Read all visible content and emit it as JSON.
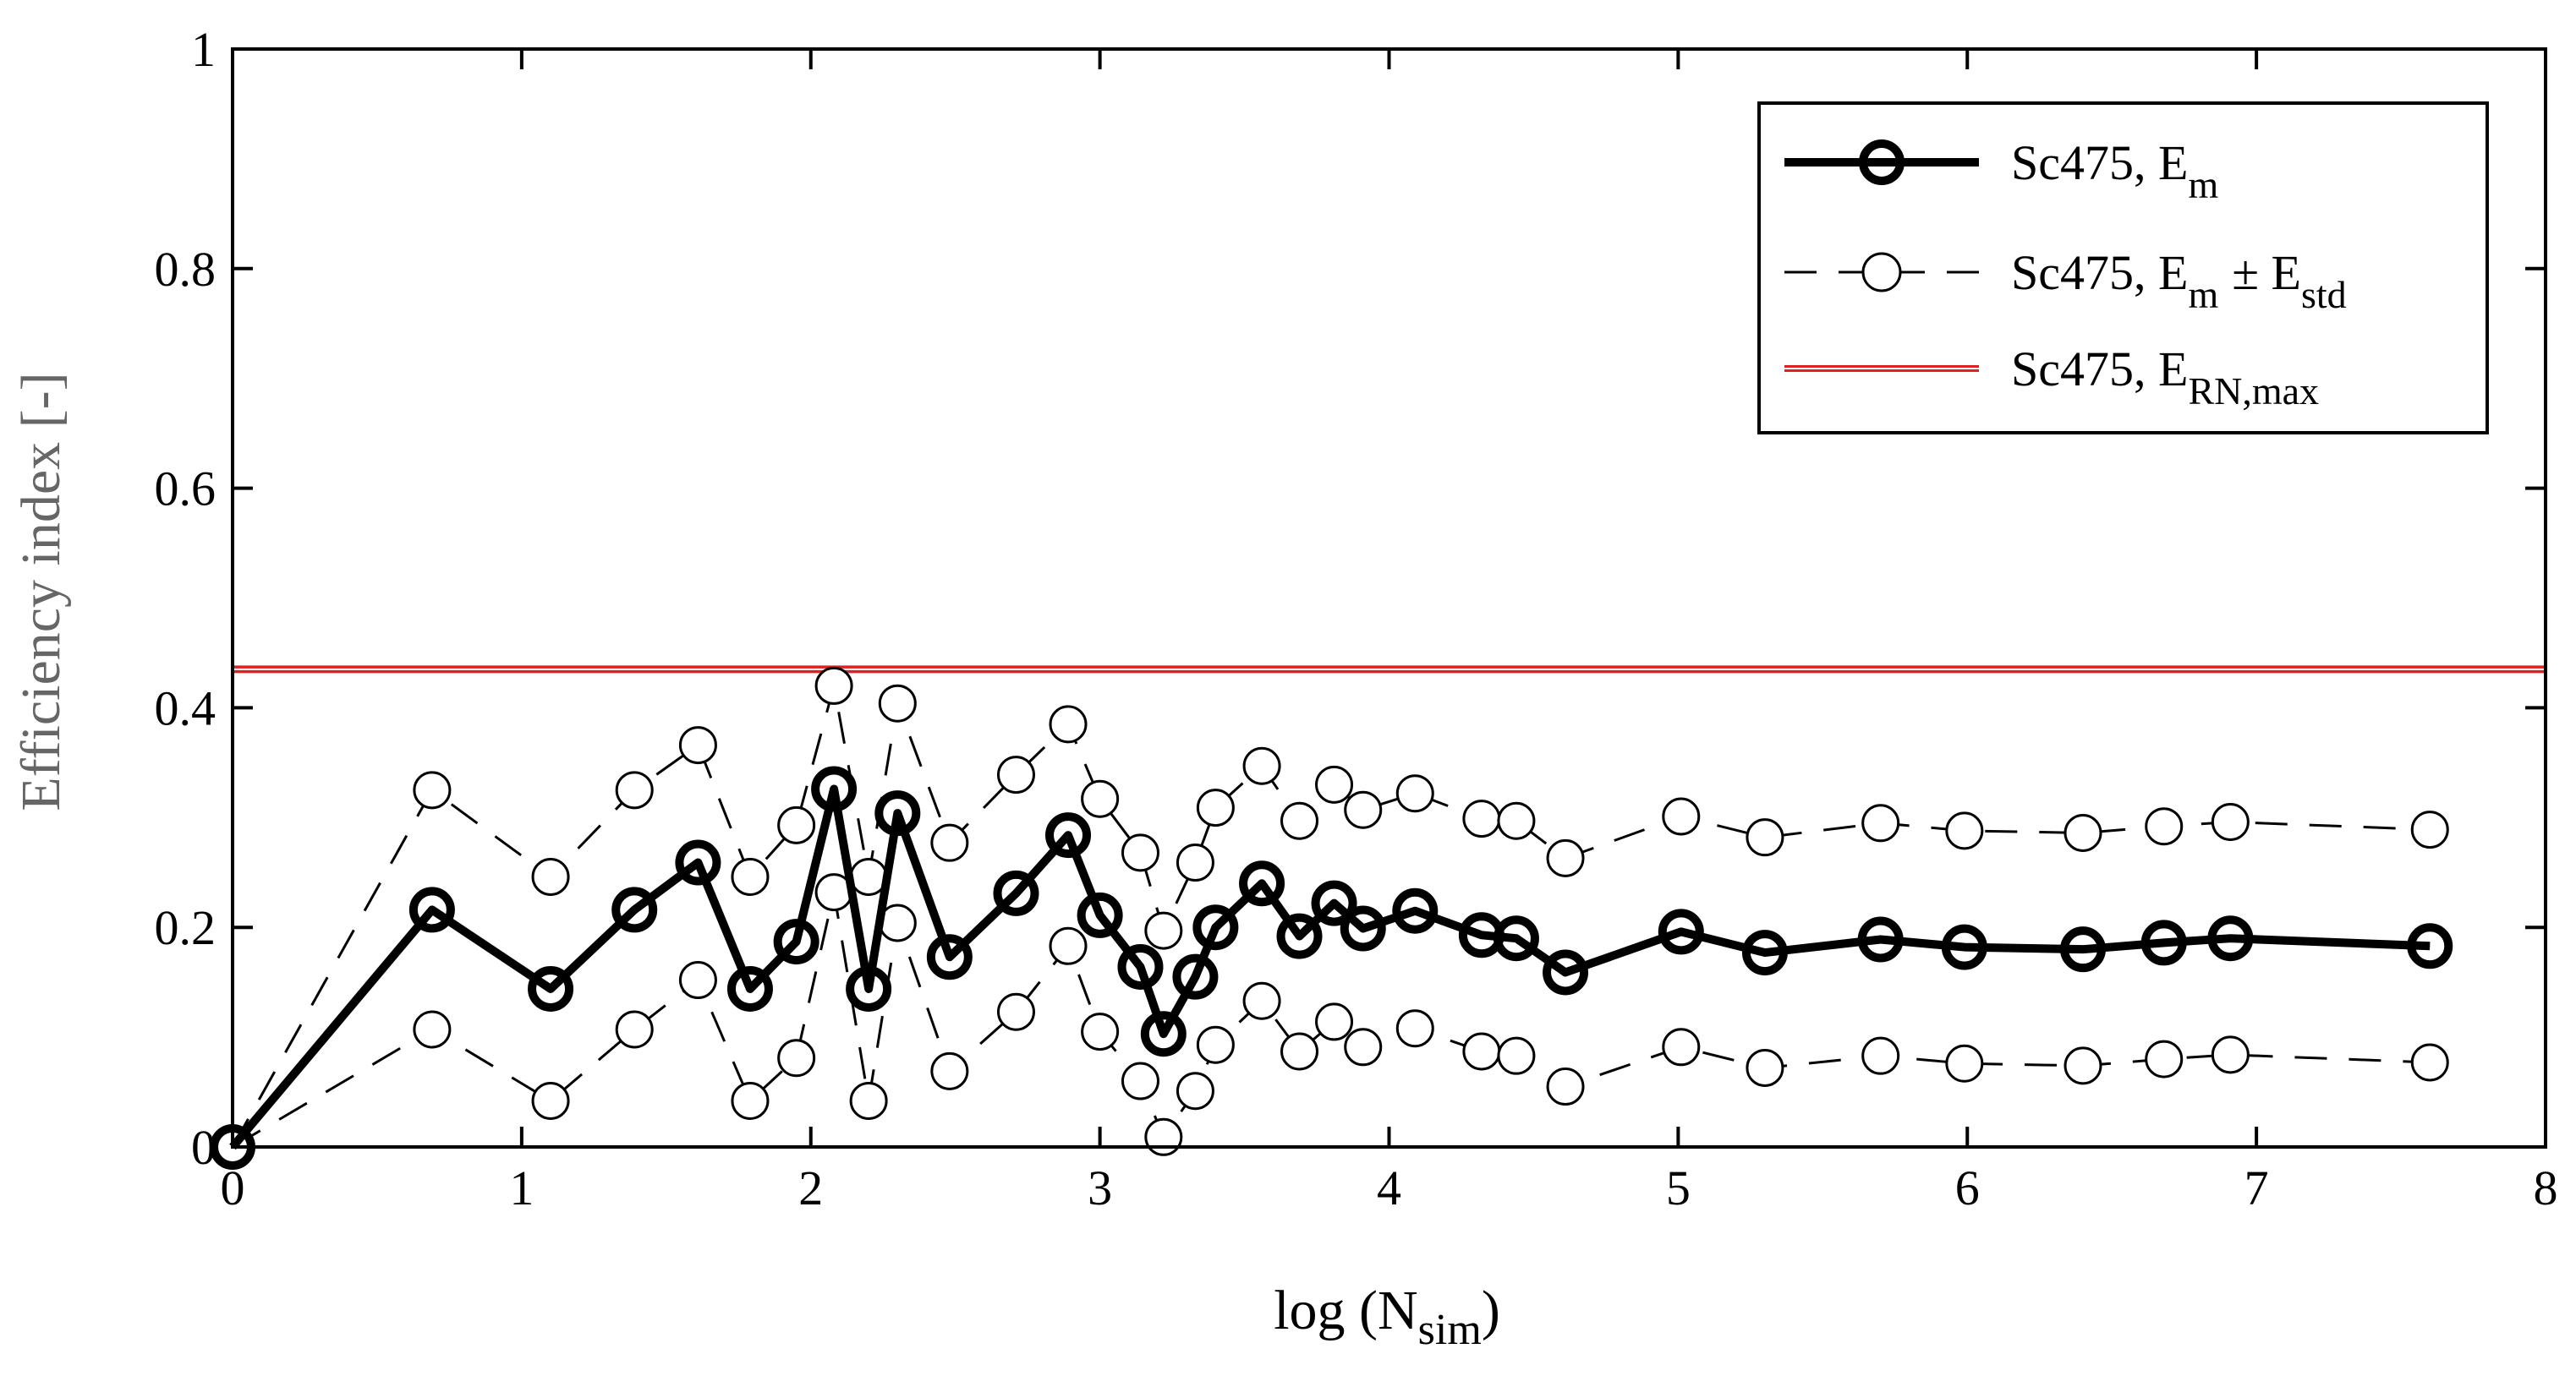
{
  "chart_data": {
    "type": "line",
    "title": "",
    "xlabel": "log (N",
    "xlabel_sub": "sim",
    "xlabel_end": ")",
    "ylabel": "Efficiency index [-]",
    "xlim": [
      0,
      8
    ],
    "ylim": [
      0,
      1
    ],
    "xticks": [
      0,
      1,
      2,
      3,
      4,
      5,
      6,
      7,
      8
    ],
    "xtick_labels": [
      "0",
      "1",
      "2",
      "3",
      "4",
      "5",
      "6",
      "7",
      "8"
    ],
    "yticks": [
      0,
      0.2,
      0.4,
      0.6,
      0.8,
      1
    ],
    "ytick_labels": [
      "0",
      "0.2",
      "0.4",
      "0.6",
      "0.8",
      "1"
    ],
    "grid": false,
    "legend_position": "top-right",
    "x": [
      0,
      0.69,
      1.1,
      1.39,
      1.61,
      1.79,
      1.95,
      2.08,
      2.2,
      2.3,
      2.48,
      2.71,
      2.89,
      3.0,
      3.14,
      3.22,
      3.33,
      3.4,
      3.56,
      3.69,
      3.81,
      3.91,
      4.09,
      4.32,
      4.44,
      4.61,
      5.01,
      5.3,
      5.7,
      5.99,
      6.4,
      6.68,
      6.91,
      7.6
    ],
    "series": [
      {
        "name": "Sc475, E_m",
        "legend_main": "Sc475, E",
        "legend_sub": "m",
        "legend_pm": "",
        "legend_sub2": "",
        "style": "solid-thick",
        "values": [
          0.0,
          0.216,
          0.144,
          0.216,
          0.259,
          0.144,
          0.187,
          0.326,
          0.144,
          0.304,
          0.173,
          0.231,
          0.284,
          0.211,
          0.164,
          0.103,
          0.155,
          0.2,
          0.24,
          0.192,
          0.222,
          0.199,
          0.215,
          0.193,
          0.19,
          0.159,
          0.196,
          0.177,
          0.189,
          0.182,
          0.18,
          0.186,
          0.19,
          0.183
        ]
      },
      {
        "name": "Sc475, E_m + E_std",
        "legend_main": "Sc475, E",
        "legend_sub": "m",
        "legend_pm": "± E",
        "legend_sub2": "std",
        "style": "dashed",
        "values": [
          0.0,
          0.325,
          0.246,
          0.325,
          0.366,
          0.246,
          0.293,
          0.42,
          0.246,
          0.404,
          0.277,
          0.339,
          0.385,
          0.317,
          0.268,
          0.197,
          0.259,
          0.309,
          0.347,
          0.297,
          0.33,
          0.307,
          0.322,
          0.299,
          0.297,
          0.263,
          0.301,
          0.282,
          0.295,
          0.288,
          0.286,
          0.292,
          0.296,
          0.289
        ]
      },
      {
        "name": "Sc475, E_m - E_std",
        "style": "dashed",
        "values": [
          0.0,
          0.107,
          0.042,
          0.107,
          0.152,
          0.042,
          0.081,
          0.232,
          0.042,
          0.204,
          0.069,
          0.123,
          0.183,
          0.105,
          0.06,
          0.009,
          0.051,
          0.093,
          0.133,
          0.087,
          0.114,
          0.091,
          0.108,
          0.087,
          0.083,
          0.055,
          0.091,
          0.072,
          0.083,
          0.076,
          0.074,
          0.08,
          0.084,
          0.077
        ]
      }
    ],
    "reference_line": {
      "name": "Sc475, E_RN,max",
      "legend_main": "Sc475, E",
      "legend_sub": "RN,max",
      "value": 0.435,
      "color": "#e02020"
    }
  }
}
